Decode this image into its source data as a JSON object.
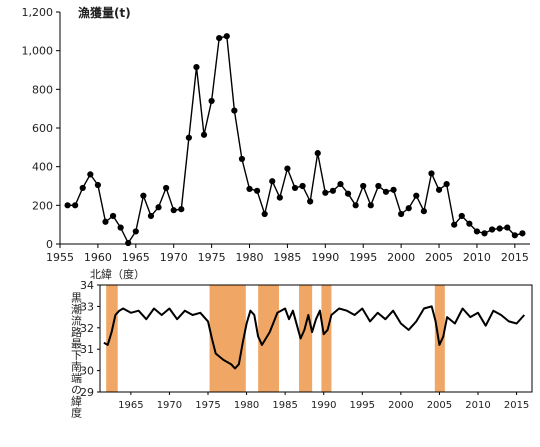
{
  "chart_data": [
    {
      "type": "line",
      "title": "漁獲量(t)",
      "ylabel": "",
      "xlabel": "",
      "xlim": [
        1955,
        2017
      ],
      "ylim": [
        0,
        1200
      ],
      "x_ticks": [
        "1955",
        "1960",
        "1965",
        "1970",
        "1975",
        "1980",
        "1985",
        "1990",
        "1995",
        "2000",
        "2005",
        "2010",
        "2015"
      ],
      "y_ticks": [
        "0",
        "200",
        "400",
        "600",
        "800",
        "1,000",
        "1,200"
      ],
      "grid": false,
      "series": [
        {
          "markers": "circle",
          "x": [
            1956,
            1957,
            1958,
            1959,
            1960,
            1961,
            1962,
            1963,
            1964,
            1965,
            1966,
            1967,
            1968,
            1969,
            1970,
            1971,
            1972,
            1973,
            1974,
            1975,
            1976,
            1977,
            1978,
            1979,
            1980,
            1981,
            1982,
            1983,
            1984,
            1985,
            1986,
            1987,
            1988,
            1989,
            1990,
            1991,
            1992,
            1993,
            1994,
            1995,
            1996,
            1997,
            1998,
            1999,
            2000,
            2001,
            2002,
            2003,
            2004,
            2005,
            2006,
            2007,
            2008,
            2009,
            2010,
            2011,
            2012,
            2013,
            2014,
            2015,
            2016
          ],
          "y": [
            200,
            200,
            290,
            360,
            305,
            115,
            145,
            85,
            5,
            65,
            250,
            145,
            190,
            290,
            175,
            180,
            550,
            915,
            565,
            740,
            1065,
            1075,
            690,
            440,
            285,
            275,
            155,
            325,
            240,
            390,
            290,
            300,
            220,
            470,
            265,
            275,
            310,
            260,
            200,
            300,
            200,
            300,
            270,
            280,
            155,
            185,
            250,
            170,
            365,
            280,
            310,
            100,
            145,
            105,
            65,
            55,
            75,
            80,
            85,
            45,
            55
          ]
        }
      ]
    },
    {
      "type": "line",
      "title": "北緯（度）",
      "ylabel": "黒潮流路最下南端の緯度",
      "xlabel": "",
      "xlim": [
        1961,
        2017
      ],
      "ylim": [
        29,
        34
      ],
      "x_ticks": [
        "1965",
        "1970",
        "1975",
        "1980",
        "1985",
        "1990",
        "1995",
        "2000",
        "2005",
        "2010",
        "2015"
      ],
      "y_ticks": [
        "29",
        "30",
        "31",
        "32",
        "33",
        "34"
      ],
      "grid": false,
      "shaded_periods": [
        [
          1961.8,
          1963.3
        ],
        [
          1975.2,
          1979.9
        ],
        [
          1981.5,
          1984.2
        ],
        [
          1986.8,
          1988.5
        ],
        [
          1989.7,
          1991.0
        ],
        [
          2004.4,
          2005.7
        ]
      ],
      "series": [
        {
          "name": "",
          "style": "bold",
          "x": [
            1961.5,
            1962,
            1962.5,
            1963,
            1963.5,
            1964,
            1965,
            1966,
            1967,
            1968,
            1969,
            1970,
            1971,
            1972,
            1973,
            1974,
            1975,
            1975.5,
            1976,
            1977,
            1978,
            1978.5,
            1979,
            1979.5,
            1980,
            1980.5,
            1981,
            1981.5,
            1982,
            1983,
            1984,
            1985,
            1985.5,
            1986,
            1987,
            1987.5,
            1988,
            1988.5,
            1989,
            1989.5,
            1990,
            1990.5,
            1991,
            1992,
            1993,
            1994,
            1995,
            1996,
            1997,
            1998,
            1999,
            2000,
            2001,
            2002,
            2003,
            2004,
            2004.5,
            2005,
            2005.5,
            2006,
            2007,
            2008,
            2009,
            2010,
            2011,
            2012,
            2013,
            2014,
            2015,
            2016
          ],
          "y": [
            31.3,
            31.2,
            31.8,
            32.6,
            32.8,
            32.9,
            32.7,
            32.8,
            32.4,
            32.9,
            32.6,
            32.9,
            32.4,
            32.8,
            32.6,
            32.7,
            32.3,
            31.5,
            30.8,
            30.5,
            30.3,
            30.1,
            30.3,
            31.3,
            32.2,
            32.8,
            32.6,
            31.6,
            31.2,
            31.8,
            32.7,
            32.9,
            32.4,
            32.8,
            31.5,
            31.9,
            32.6,
            31.8,
            32.4,
            32.8,
            31.7,
            31.9,
            32.6,
            32.9,
            32.8,
            32.6,
            32.9,
            32.3,
            32.7,
            32.4,
            32.8,
            32.2,
            31.9,
            32.3,
            32.9,
            33.0,
            32.3,
            31.2,
            31.6,
            32.5,
            32.2,
            32.9,
            32.5,
            32.7,
            32.1,
            32.8,
            32.6,
            32.3,
            32.2,
            32.6
          ]
        }
      ]
    }
  ]
}
